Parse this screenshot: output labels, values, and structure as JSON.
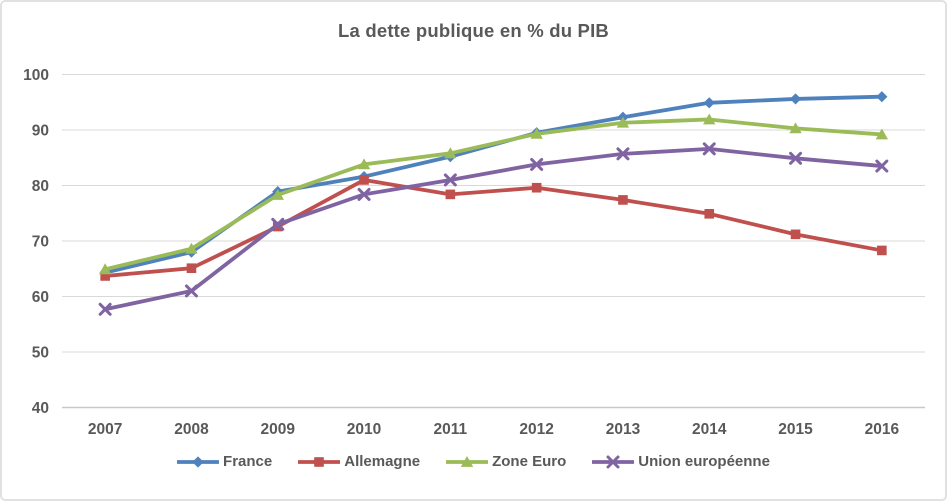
{
  "chart_data": {
    "type": "line",
    "title": "La dette publique en % du PIB",
    "categories": [
      "2007",
      "2008",
      "2009",
      "2010",
      "2011",
      "2012",
      "2013",
      "2014",
      "2015",
      "2016"
    ],
    "series": [
      {
        "name": "France",
        "color": "#4F81BD",
        "marker": "diamond",
        "values": [
          64.3,
          68.0,
          78.9,
          81.6,
          85.2,
          89.5,
          92.3,
          94.9,
          95.6,
          96.0
        ]
      },
      {
        "name": "Allemagne",
        "color": "#C0504D",
        "marker": "square",
        "values": [
          63.7,
          65.1,
          72.6,
          81.0,
          78.4,
          79.6,
          77.4,
          74.9,
          71.2,
          68.3
        ]
      },
      {
        "name": "Zone Euro",
        "color": "#9BBB59",
        "marker": "triangle",
        "values": [
          64.9,
          68.6,
          78.3,
          83.8,
          85.8,
          89.3,
          91.3,
          91.9,
          90.3,
          89.2
        ]
      },
      {
        "name": "Union européenne",
        "color": "#8064A2",
        "marker": "x",
        "values": [
          57.7,
          61.0,
          73.0,
          78.4,
          81.0,
          83.8,
          85.7,
          86.6,
          84.9,
          83.5
        ]
      }
    ],
    "ylim": [
      40,
      100
    ],
    "yticks": [
      40,
      50,
      60,
      70,
      80,
      90,
      100
    ],
    "grid": true,
    "legend_position": "bottom",
    "xlabel": "",
    "ylabel": "",
    "axis_text_color": "#595959",
    "gridline_color": "#D9D9D9",
    "axisline_color": "#C8C8C8"
  }
}
